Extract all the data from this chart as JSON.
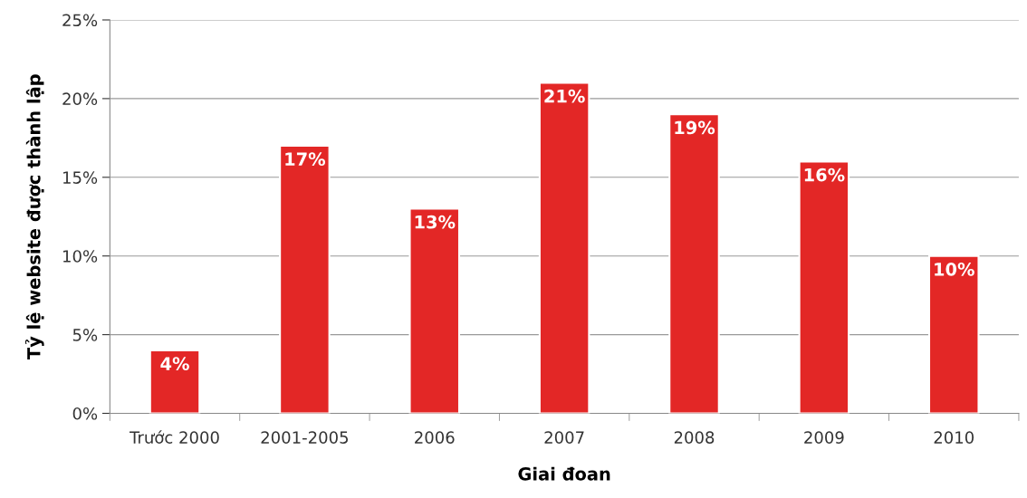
{
  "chart_data": {
    "type": "bar",
    "xlabel": "Giai đoan",
    "ylabel": "Tỷ lệ website được thành lập",
    "categories": [
      "Trước 2000",
      "2001-2005",
      "2006",
      "2007",
      "2008",
      "2009",
      "2010"
    ],
    "values": [
      4,
      17,
      13,
      21,
      19,
      16,
      10
    ],
    "color": "#e32726",
    "value_labels": [
      "4%",
      "17%",
      "13%",
      "21%",
      "19%",
      "16%",
      "10%"
    ],
    "ylim": [
      0,
      25
    ],
    "yticks": [
      {
        "value": 0,
        "label": "0%"
      },
      {
        "value": 5,
        "label": "5%"
      },
      {
        "value": 10,
        "label": "10%"
      },
      {
        "value": 15,
        "label": "15%"
      },
      {
        "value": 20,
        "label": "20%"
      },
      {
        "value": 25,
        "label": "25%"
      }
    ],
    "grid": "y",
    "legend": false
  }
}
